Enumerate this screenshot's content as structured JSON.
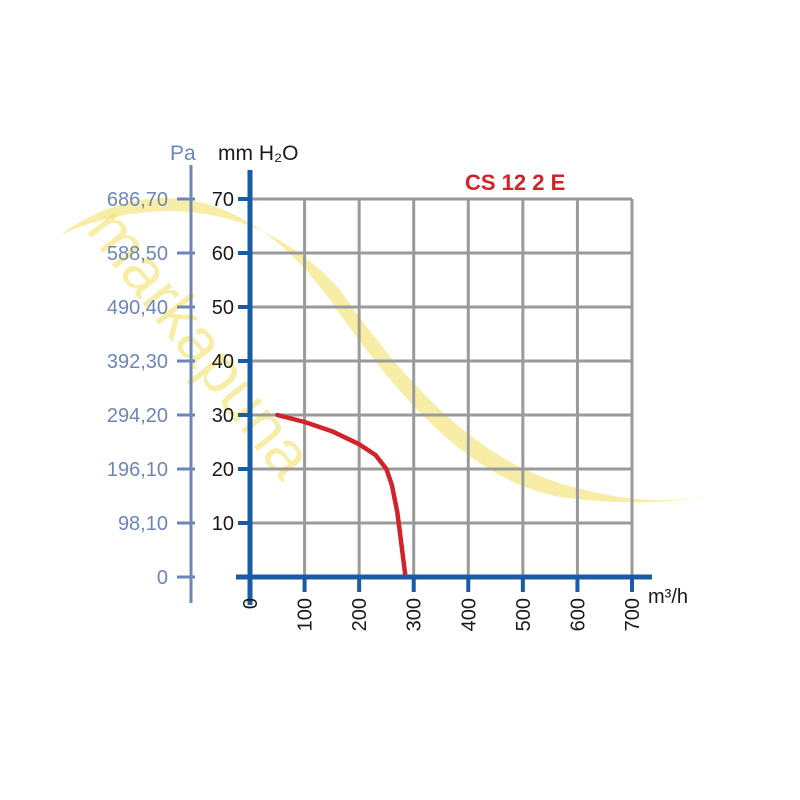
{
  "chart_data": {
    "type": "line",
    "title": "CS 12 2 E",
    "xlabel": "m³/h",
    "ylabel": "mm H₂O",
    "ylabel_secondary": "Pa",
    "xlim": [
      0,
      700
    ],
    "ylim": [
      0,
      70
    ],
    "x_ticks": [
      "0",
      "100",
      "200",
      "300",
      "400",
      "500",
      "600",
      "700"
    ],
    "y_ticks": [
      "10",
      "20",
      "30",
      "40",
      "50",
      "60",
      "70"
    ],
    "y_ticks_pa": [
      "0",
      "98,10",
      "196,10",
      "294,20",
      "392,30",
      "490,40",
      "588,50",
      "686,70"
    ],
    "grid": true,
    "series": [
      {
        "x": [
          50,
          100,
          150,
          200,
          230,
          250,
          260,
          270,
          275,
          280,
          285
        ],
        "y": [
          30,
          28.7,
          27,
          24.6,
          22.6,
          20,
          17,
          12,
          8,
          4,
          0
        ]
      }
    ],
    "colors": {
      "axis": "#1a5ba6",
      "pa_axis": "#6d86b8",
      "grid": "#9a9a9a",
      "curve": "#d3222a",
      "title": "#d3222a",
      "watermark": "#f2df5e"
    }
  },
  "watermark_text": "markapuna"
}
